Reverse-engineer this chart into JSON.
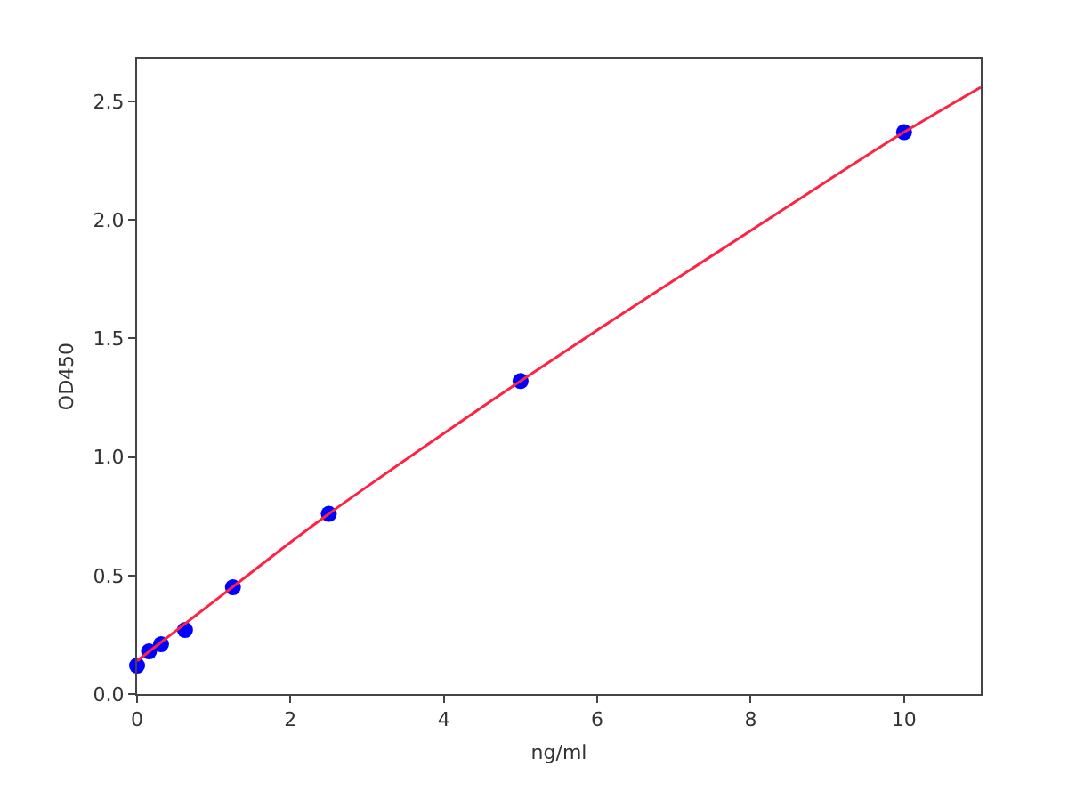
{
  "chart_data": {
    "type": "scatter",
    "xlabel": "ng/ml",
    "ylabel": "OD450",
    "series": [
      {
        "color": "#0000ff",
        "marker": "circle",
        "x": [
          0,
          0.156,
          0.3125,
          0.625,
          1.25,
          2.5,
          5,
          10
        ],
        "values": [
          0.12,
          0.18,
          0.21,
          0.27,
          0.45,
          0.76,
          1.32,
          2.37
        ]
      },
      {
        "type": "line",
        "color": "#ff2244",
        "marker": "none",
        "line_style": "solid",
        "x": [
          0,
          0.5,
          1,
          1.5,
          2,
          2.5,
          3,
          4,
          5,
          6,
          7,
          8,
          9,
          10,
          11
        ],
        "values": [
          0.14,
          0.265,
          0.39,
          0.515,
          0.64,
          0.76,
          0.875,
          1.1,
          1.32,
          1.535,
          1.745,
          1.955,
          2.165,
          2.37,
          2.56
        ]
      }
    ],
    "xlim": [
      0,
      11
    ],
    "xticks": [
      0,
      2,
      4,
      6,
      8,
      10
    ],
    "ylim": [
      0,
      2.68
    ],
    "yticks": [
      {
        "value": 0,
        "label": "0.0"
      },
      0.5,
      {
        "value": 1,
        "label": "1.0"
      },
      1.5,
      {
        "value": 2,
        "label": "2.0"
      },
      2.5
    ],
    "grid": false
  }
}
